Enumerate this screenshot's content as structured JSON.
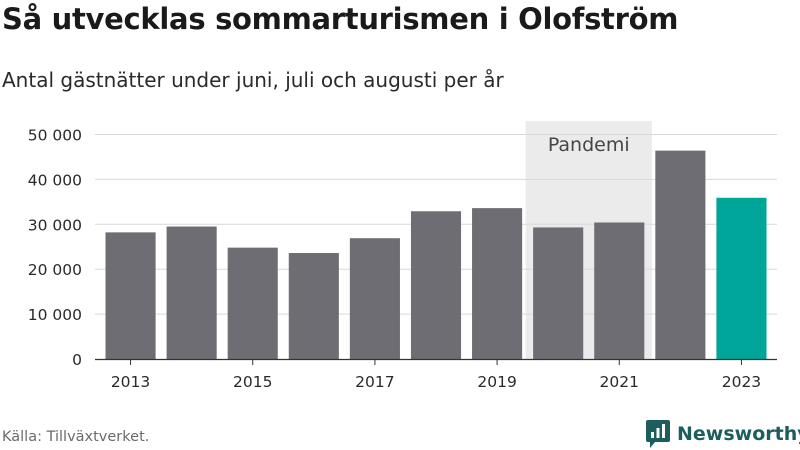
{
  "title": "Så utvecklas sommarturismen i Olofström",
  "subtitle": "Antal gästnätter under juni, juli och augusti per år",
  "source": "Källa: Tillväxtverket.",
  "brand": {
    "name": "Newsworthy",
    "icon": "newsworthy-logo-icon",
    "color": "#1c5d5d"
  },
  "colors": {
    "bar": "#6e6d73",
    "highlight": "#00a59a",
    "annotation_band": "#ebebeb",
    "grid": "#d9d9d9"
  },
  "chart_data": {
    "type": "bar",
    "x": [
      2013,
      2014,
      2015,
      2016,
      2017,
      2018,
      2019,
      2020,
      2021,
      2022,
      2023
    ],
    "values": [
      28200,
      29500,
      24800,
      23600,
      26900,
      32900,
      33600,
      29300,
      30400,
      46400,
      35900
    ],
    "highlight_index": 10,
    "x_tick_labels": [
      "2013",
      "2015",
      "2017",
      "2019",
      "2021",
      "2023"
    ],
    "y_ticks": [
      0,
      10000,
      20000,
      30000,
      40000,
      50000
    ],
    "y_tick_labels": [
      "0",
      "10 000",
      "20 000",
      "30 000",
      "40 000",
      "50 000"
    ],
    "ylim": [
      0,
      53000
    ],
    "grid": true,
    "annotation": {
      "label": "Pandemi",
      "from": 2020,
      "to": 2021
    }
  }
}
